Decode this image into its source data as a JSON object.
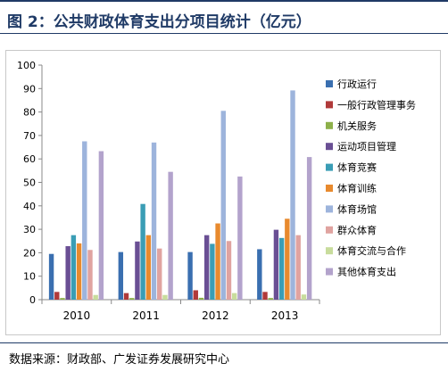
{
  "title": "图 2：公共财政体育支出分项目统计（亿元）",
  "source": "数据来源：财政部、广发证券发展研究中心",
  "chart_data": {
    "type": "bar",
    "categories": [
      "2010",
      "2011",
      "2012",
      "2013"
    ],
    "ylim": [
      0,
      100
    ],
    "yticks": [
      0,
      10,
      20,
      30,
      40,
      50,
      60,
      70,
      80,
      90,
      100
    ],
    "grid": false,
    "legend_position": "right",
    "series": [
      {
        "name": "行政运行",
        "color": "#3a6fb0",
        "values": [
          19.5,
          20.3,
          20.3,
          21.5
        ]
      },
      {
        "name": "一般行政管理事务",
        "color": "#b03a3a",
        "values": [
          3.3,
          2.8,
          4.0,
          3.3
        ]
      },
      {
        "name": "机关服务",
        "color": "#8db04a",
        "values": [
          0.7,
          0.7,
          0.8,
          0.7
        ]
      },
      {
        "name": "运动项目管理",
        "color": "#6a4f94",
        "values": [
          22.8,
          24.8,
          27.5,
          29.8
        ]
      },
      {
        "name": "体育竞赛",
        "color": "#3a9db5",
        "values": [
          27.5,
          40.8,
          23.8,
          26.3
        ]
      },
      {
        "name": "体育训练",
        "color": "#e88a2e",
        "values": [
          24.0,
          27.5,
          32.5,
          34.5
        ]
      },
      {
        "name": "体育场馆",
        "color": "#9db4dc",
        "values": [
          67.5,
          67.0,
          80.5,
          89.2
        ]
      },
      {
        "name": "群众体育",
        "color": "#e0a3a0",
        "values": [
          21.2,
          21.8,
          25.0,
          27.5
        ]
      },
      {
        "name": "体育交流与合作",
        "color": "#c8dc9c",
        "values": [
          2.0,
          2.0,
          2.8,
          2.2
        ]
      },
      {
        "name": "其他体育支出",
        "color": "#b3a3cc",
        "values": [
          63.3,
          54.5,
          52.5,
          60.8
        ]
      }
    ]
  }
}
